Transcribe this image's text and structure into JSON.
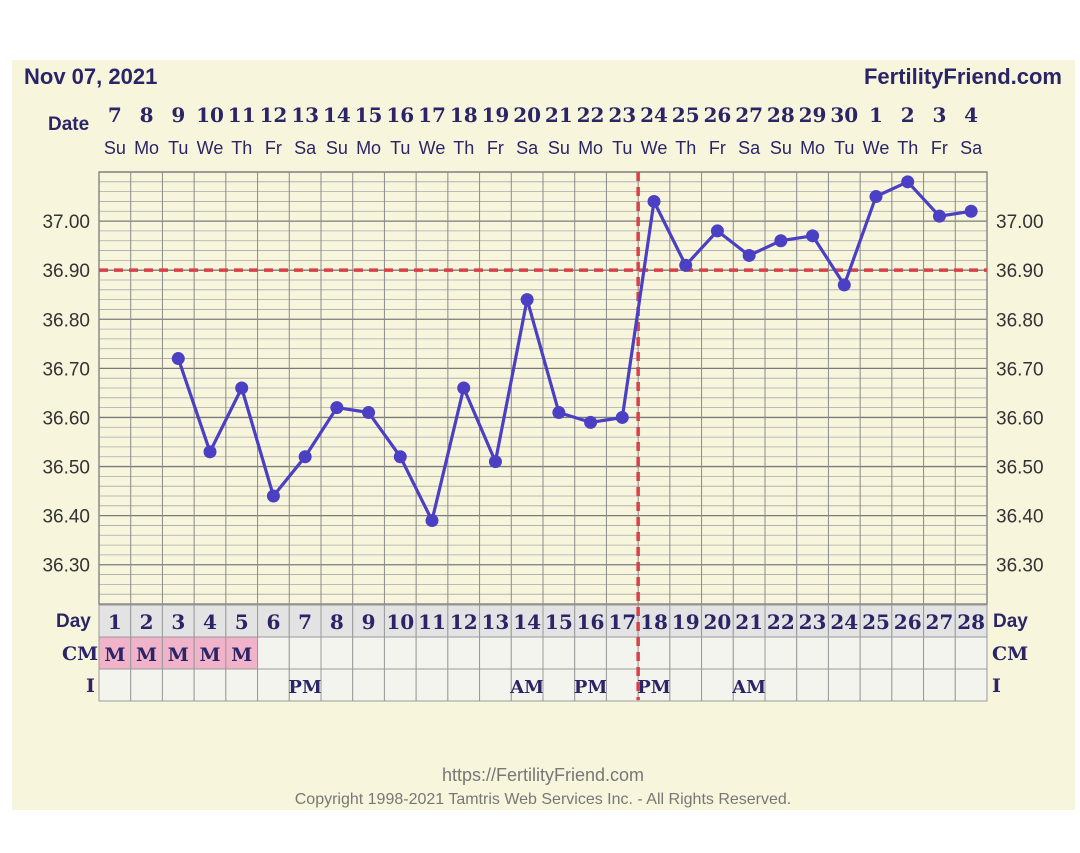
{
  "chart_data": {
    "type": "line",
    "title": "Nov 07, 2021",
    "brand": "FertilityFriend.com",
    "date_label": "Date",
    "day_label": "Day",
    "cm_label": "CM",
    "i_label": "I",
    "dates": [
      "7",
      "8",
      "9",
      "10",
      "11",
      "12",
      "13",
      "14",
      "15",
      "16",
      "17",
      "18",
      "19",
      "20",
      "21",
      "22",
      "23",
      "24",
      "25",
      "26",
      "27",
      "28",
      "29",
      "30",
      "1",
      "2",
      "3",
      "4"
    ],
    "weekdays": [
      "Su",
      "Mo",
      "Tu",
      "We",
      "Th",
      "Fr",
      "Sa",
      "Su",
      "Mo",
      "Tu",
      "We",
      "Th",
      "Fr",
      "Sa",
      "Su",
      "Mo",
      "Tu",
      "We",
      "Th",
      "Fr",
      "Sa",
      "Su",
      "Mo",
      "Tu",
      "We",
      "Th",
      "Fr",
      "Sa"
    ],
    "days": [
      1,
      2,
      3,
      4,
      5,
      6,
      7,
      8,
      9,
      10,
      11,
      12,
      13,
      14,
      15,
      16,
      17,
      18,
      19,
      20,
      21,
      22,
      23,
      24,
      25,
      26,
      27,
      28
    ],
    "cm": [
      "M",
      "M",
      "M",
      "M",
      "M",
      "",
      "",
      "",
      "",
      "",
      "",
      "",
      "",
      "",
      "",
      "",
      "",
      "",
      "",
      "",
      "",
      "",
      "",
      "",
      "",
      "",
      "",
      ""
    ],
    "intercourse": [
      "",
      "",
      "",
      "",
      "",
      "",
      "PM",
      "",
      "",
      "",
      "",
      "",
      "",
      "AM",
      "",
      "PM",
      "",
      "PM",
      "",
      "",
      "AM",
      "",
      "",
      "",
      "",
      "",
      "",
      ""
    ],
    "temps": [
      null,
      null,
      36.72,
      36.53,
      36.66,
      36.44,
      36.52,
      36.62,
      36.61,
      36.52,
      36.39,
      36.66,
      36.51,
      36.84,
      36.61,
      36.59,
      36.6,
      37.04,
      36.91,
      36.98,
      36.93,
      36.96,
      36.97,
      36.87,
      37.05,
      37.08,
      37.01,
      37.02
    ],
    "yticks": [
      "37.00",
      "36.90",
      "36.80",
      "36.70",
      "36.60",
      "36.50",
      "36.40",
      "36.30"
    ],
    "ylim": [
      36.22,
      37.1
    ],
    "coverline": 36.9,
    "ovulation_day": 17,
    "colors": {
      "line": "#4b3fc4",
      "coverline": "#d9404a",
      "cm_fill": "#f0b3c9",
      "grid": "#8a8a8a",
      "text": "#2a2566"
    }
  },
  "footer": {
    "url": "https://FertilityFriend.com",
    "copyright": "Copyright 1998-2021 Tamtris Web Services Inc. - All Rights Reserved."
  }
}
